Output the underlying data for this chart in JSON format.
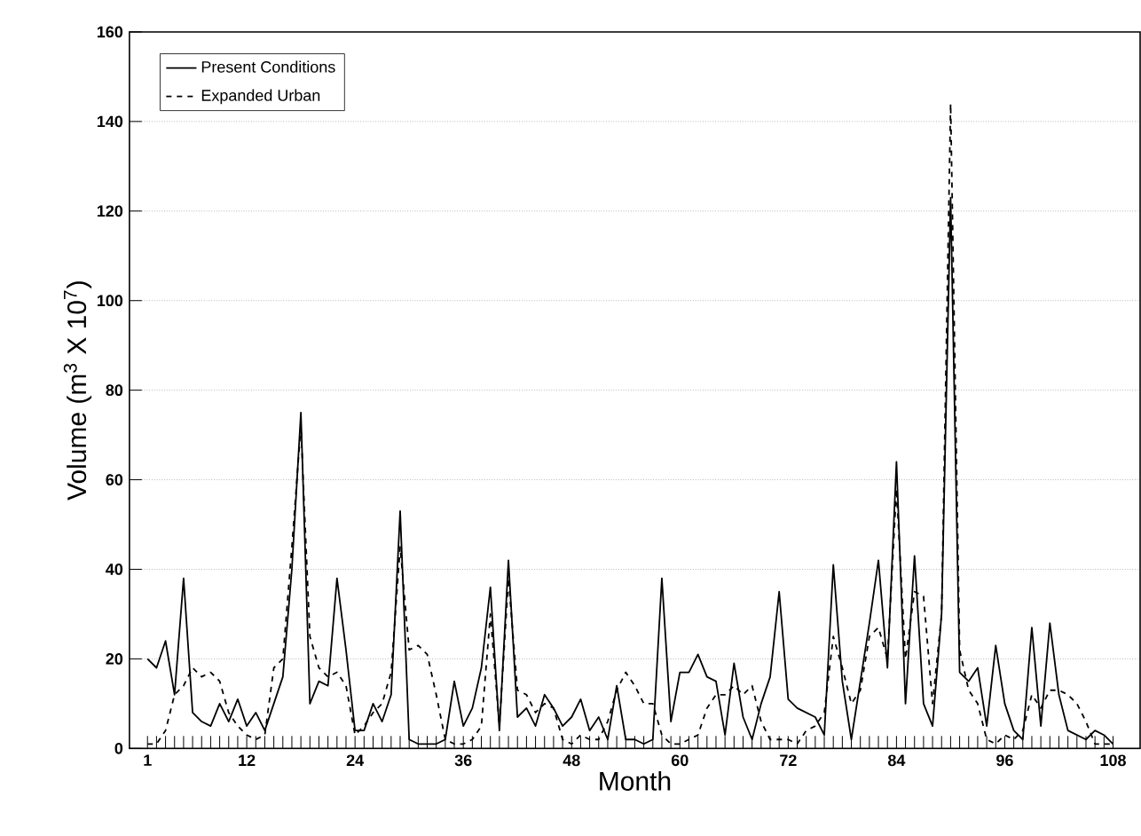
{
  "chart_data": {
    "type": "line",
    "xlabel": "Month",
    "ylabel": "Volume (m$^{3}$ X 10$^{7}$)",
    "x": [
      1,
      2,
      3,
      4,
      5,
      6,
      7,
      8,
      9,
      10,
      11,
      12,
      13,
      14,
      15,
      16,
      17,
      18,
      19,
      20,
      21,
      22,
      23,
      24,
      25,
      26,
      27,
      28,
      29,
      30,
      31,
      32,
      33,
      34,
      35,
      36,
      37,
      38,
      39,
      40,
      41,
      42,
      43,
      44,
      45,
      46,
      47,
      48,
      49,
      50,
      51,
      52,
      53,
      54,
      55,
      56,
      57,
      58,
      59,
      60,
      61,
      62,
      63,
      64,
      65,
      66,
      67,
      68,
      69,
      70,
      71,
      72,
      73,
      74,
      75,
      76,
      77,
      78,
      79,
      80,
      81,
      82,
      83,
      84,
      85,
      86,
      87,
      88,
      89,
      90,
      91,
      92,
      93,
      94,
      95,
      96,
      97,
      98,
      99,
      100,
      101,
      102,
      103,
      104,
      105,
      106,
      107,
      108
    ],
    "series": [
      {
        "name": "Present Conditions",
        "color": "#000000",
        "line_style": "solid",
        "values": [
          20,
          18,
          24,
          12,
          38,
          8,
          6,
          5,
          10,
          6,
          11,
          5,
          8,
          4,
          10,
          16,
          40,
          75,
          10,
          15,
          14,
          38,
          22,
          4,
          4,
          10,
          6,
          12,
          53,
          2,
          1,
          1,
          1,
          2,
          15,
          5,
          9,
          18,
          36,
          4,
          42,
          7,
          9,
          5,
          12,
          9,
          5,
          7,
          11,
          4,
          7,
          2,
          14,
          2,
          2,
          1,
          2,
          38,
          6,
          17,
          17,
          21,
          16,
          15,
          3,
          19,
          7,
          2,
          10,
          16,
          35,
          11,
          9,
          8,
          7,
          3,
          41,
          15,
          2,
          15,
          28,
          42,
          18,
          64,
          10,
          43,
          10,
          5,
          30,
          123,
          17,
          15,
          18,
          5,
          23,
          10,
          4,
          2,
          27,
          5,
          28,
          12,
          4,
          3,
          2,
          4,
          3,
          1
        ]
      },
      {
        "name": "Expanded Urban",
        "color": "#000000",
        "line_style": "dashed",
        "values": [
          1,
          1,
          4,
          12,
          14,
          18,
          16,
          17,
          15,
          8,
          5,
          3,
          2,
          3,
          18,
          20,
          45,
          72,
          25,
          18,
          16,
          17,
          14,
          3,
          5,
          8,
          10,
          17,
          45,
          22,
          23,
          21,
          12,
          2,
          1,
          1,
          2,
          5,
          30,
          5,
          38,
          13,
          12,
          8,
          10,
          9,
          2,
          1,
          3,
          2,
          2,
          6,
          13,
          17,
          14,
          10,
          10,
          3,
          1,
          1,
          2,
          3,
          9,
          12,
          12,
          14,
          12,
          14,
          6,
          2,
          2,
          2,
          1,
          4,
          5,
          8,
          25,
          18,
          10,
          13,
          25,
          27,
          20,
          58,
          20,
          35,
          34,
          10,
          30,
          144,
          22,
          13,
          10,
          2,
          1,
          3,
          2,
          4,
          12,
          9,
          13,
          13,
          12,
          10,
          6,
          1,
          1,
          1
        ]
      }
    ],
    "xlim": [
      -1,
      111
    ],
    "xticks": [
      1,
      {
        "value": 2,
        "label": null
      },
      {
        "value": 3,
        "label": null
      },
      {
        "value": 4,
        "label": null
      },
      {
        "value": 5,
        "label": null
      },
      {
        "value": 6,
        "label": null
      },
      {
        "value": 7,
        "label": null
      },
      {
        "value": 8,
        "label": null
      },
      {
        "value": 9,
        "label": null
      },
      {
        "value": 10,
        "label": null
      },
      {
        "value": 11,
        "label": null
      },
      12,
      {
        "value": 13,
        "label": null
      },
      {
        "value": 14,
        "label": null
      },
      {
        "value": 15,
        "label": null
      },
      {
        "value": 16,
        "label": null
      },
      {
        "value": 17,
        "label": null
      },
      {
        "value": 18,
        "label": null
      },
      {
        "value": 19,
        "label": null
      },
      {
        "value": 20,
        "label": null
      },
      {
        "value": 21,
        "label": null
      },
      {
        "value": 22,
        "label": null
      },
      {
        "value": 23,
        "label": null
      },
      24,
      {
        "value": 25,
        "label": null
      },
      {
        "value": 26,
        "label": null
      },
      {
        "value": 27,
        "label": null
      },
      {
        "value": 28,
        "label": null
      },
      {
        "value": 29,
        "label": null
      },
      {
        "value": 30,
        "label": null
      },
      {
        "value": 31,
        "label": null
      },
      {
        "value": 32,
        "label": null
      },
      {
        "value": 33,
        "label": null
      },
      {
        "value": 34,
        "label": null
      },
      {
        "value": 35,
        "label": null
      },
      36,
      {
        "value": 37,
        "label": null
      },
      {
        "value": 38,
        "label": null
      },
      {
        "value": 39,
        "label": null
      },
      {
        "value": 40,
        "label": null
      },
      {
        "value": 41,
        "label": null
      },
      {
        "value": 42,
        "label": null
      },
      {
        "value": 43,
        "label": null
      },
      {
        "value": 44,
        "label": null
      },
      {
        "value": 45,
        "label": null
      },
      {
        "value": 46,
        "label": null
      },
      {
        "value": 47,
        "label": null
      },
      48,
      {
        "value": 49,
        "label": null
      },
      {
        "value": 50,
        "label": null
      },
      {
        "value": 51,
        "label": null
      },
      {
        "value": 52,
        "label": null
      },
      {
        "value": 53,
        "label": null
      },
      {
        "value": 54,
        "label": null
      },
      {
        "value": 55,
        "label": null
      },
      {
        "value": 56,
        "label": null
      },
      {
        "value": 57,
        "label": null
      },
      {
        "value": 58,
        "label": null
      },
      {
        "value": 59,
        "label": null
      },
      60,
      {
        "value": 61,
        "label": null
      },
      {
        "value": 62,
        "label": null
      },
      {
        "value": 63,
        "label": null
      },
      {
        "value": 64,
        "label": null
      },
      {
        "value": 65,
        "label": null
      },
      {
        "value": 66,
        "label": null
      },
      {
        "value": 67,
        "label": null
      },
      {
        "value": 68,
        "label": null
      },
      {
        "value": 69,
        "label": null
      },
      {
        "value": 70,
        "label": null
      },
      {
        "value": 71,
        "label": null
      },
      72,
      {
        "value": 73,
        "label": null
      },
      {
        "value": 74,
        "label": null
      },
      {
        "value": 75,
        "label": null
      },
      {
        "value": 76,
        "label": null
      },
      {
        "value": 77,
        "label": null
      },
      {
        "value": 78,
        "label": null
      },
      {
        "value": 79,
        "label": null
      },
      {
        "value": 80,
        "label": null
      },
      {
        "value": 81,
        "label": null
      },
      {
        "value": 82,
        "label": null
      },
      {
        "value": 83,
        "label": null
      },
      84,
      {
        "value": 85,
        "label": null
      },
      {
        "value": 86,
        "label": null
      },
      {
        "value": 87,
        "label": null
      },
      {
        "value": 88,
        "label": null
      },
      {
        "value": 89,
        "label": null
      },
      {
        "value": 90,
        "label": null
      },
      {
        "value": 91,
        "label": null
      },
      {
        "value": 92,
        "label": null
      },
      {
        "value": 93,
        "label": null
      },
      {
        "value": 94,
        "label": null
      },
      {
        "value": 95,
        "label": null
      },
      96,
      {
        "value": 97,
        "label": null
      },
      {
        "value": 98,
        "label": null
      },
      {
        "value": 99,
        "label": null
      },
      {
        "value": 100,
        "label": null
      },
      {
        "value": 101,
        "label": null
      },
      {
        "value": 102,
        "label": null
      },
      {
        "value": 103,
        "label": null
      },
      {
        "value": 104,
        "label": null
      },
      {
        "value": 105,
        "label": null
      },
      {
        "value": 106,
        "label": null
      },
      {
        "value": 107,
        "label": null
      },
      108
    ],
    "ylim": [
      0,
      160
    ],
    "yticks": [
      0,
      20,
      40,
      60,
      80,
      100,
      120,
      140,
      160
    ],
    "grid": "y",
    "legend": "top left",
    "marker": "none"
  }
}
